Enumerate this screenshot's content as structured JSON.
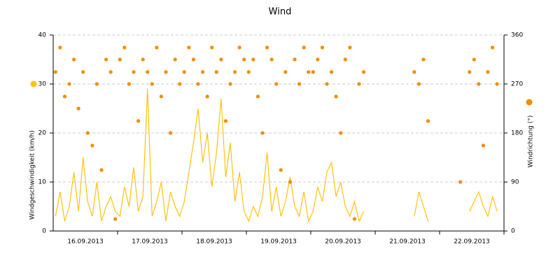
{
  "chart_data": {
    "type": "line_scatter",
    "title": "Wind",
    "xtick_labels": [
      "16.09.2013",
      "17.09.2013",
      "18.09.2013",
      "19.09.2013",
      "20.09.2013",
      "21.09.2013",
      "22.09.2013"
    ],
    "series": [
      {
        "name": "Windgeschwindigkeit (km/h)",
        "type": "line",
        "color": "#ffc20e",
        "axis": "y",
        "values": [
          3,
          8,
          2,
          5,
          12,
          4,
          15,
          6,
          3,
          10,
          2,
          5,
          7,
          4,
          3,
          9,
          5,
          13,
          4,
          7,
          29,
          3,
          6,
          10,
          2,
          8,
          5,
          3,
          6,
          12,
          18,
          25,
          14,
          20,
          9,
          16,
          27,
          11,
          18,
          6,
          12,
          4,
          2,
          5,
          3,
          7,
          16,
          4,
          9,
          3,
          6,
          11,
          5,
          3,
          8,
          2,
          4,
          9,
          6,
          12,
          14,
          7,
          10,
          5,
          3,
          6,
          2,
          4,
          null,
          null,
          null,
          null,
          null,
          null,
          null,
          null,
          null,
          null,
          3,
          8,
          5,
          2,
          null,
          null,
          null,
          null,
          null,
          null,
          3,
          null,
          4,
          6,
          8,
          5,
          3,
          7,
          4,
          null
        ]
      },
      {
        "name": "Windrichtung (°)",
        "type": "scatter",
        "color": "#f28c00",
        "axis": "y2",
        "values": [
          292,
          337,
          247,
          270,
          315,
          225,
          292,
          180,
          157,
          270,
          112,
          315,
          292,
          22,
          315,
          337,
          270,
          292,
          202,
          315,
          292,
          270,
          337,
          247,
          292,
          180,
          315,
          270,
          292,
          337,
          315,
          270,
          292,
          247,
          337,
          292,
          315,
          202,
          270,
          292,
          337,
          315,
          292,
          315,
          247,
          180,
          337,
          315,
          270,
          112,
          292,
          90,
          315,
          270,
          337,
          292,
          292,
          315,
          337,
          270,
          292,
          247,
          180,
          315,
          337,
          22,
          270,
          292,
          null,
          null,
          null,
          null,
          null,
          null,
          null,
          null,
          null,
          null,
          292,
          270,
          315,
          202,
          null,
          null,
          null,
          null,
          null,
          null,
          90,
          null,
          292,
          315,
          270,
          157,
          292,
          337,
          270,
          null
        ]
      }
    ],
    "ylim": [
      0,
      40
    ],
    "yticks": [
      0,
      10,
      20,
      30,
      40
    ],
    "y2lim": [
      0,
      360
    ],
    "y2ticks": [
      0,
      90,
      180,
      270,
      360
    ],
    "grid": true
  }
}
